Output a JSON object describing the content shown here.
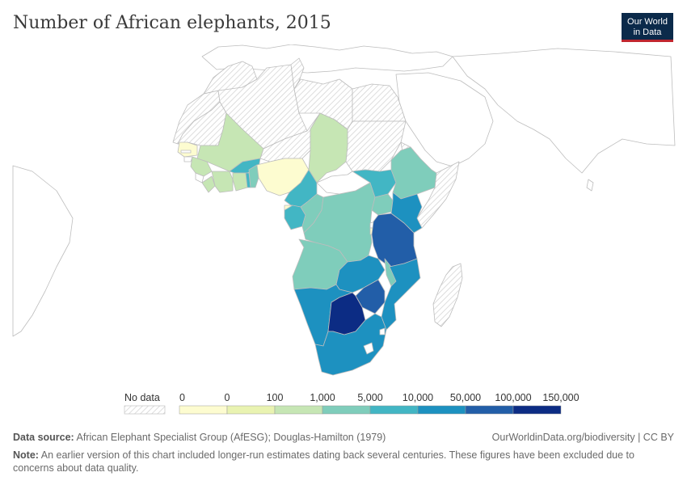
{
  "title": "Number of African elephants, 2015",
  "logo": {
    "line1": "Our World",
    "line2": "in Data"
  },
  "legend": {
    "no_data_label": "No data",
    "tick_labels": [
      "0",
      "0",
      "100",
      "1,000",
      "5,000",
      "10,000",
      "50,000",
      "100,000",
      "150,000"
    ],
    "colors": [
      "#fdfcd0",
      "#e9f3b1",
      "#c6e6b4",
      "#7fcdbb",
      "#42b6c4",
      "#1d91c0",
      "#225ea8",
      "#0c2c84"
    ]
  },
  "colors": {
    "no_data_hatch": "#cccccc",
    "land": "#ffffff",
    "border": "#bbbbbb",
    "title": "#3a3a3a",
    "brand": "#0b2a4a",
    "brand_accent": "#c0262f"
  },
  "footer": {
    "source_label": "Data source:",
    "source_text": "African Elephant Specialist Group (AfESG); Douglas-Hamilton (1979)",
    "link_text": "OurWorldinData.org/biodiversity",
    "license": "CC BY",
    "note_label": "Note:",
    "note_text": "An earlier version of this chart included longer-run estimates dating back several centuries. These figures have been excluded due to concerns about data quality."
  }
}
